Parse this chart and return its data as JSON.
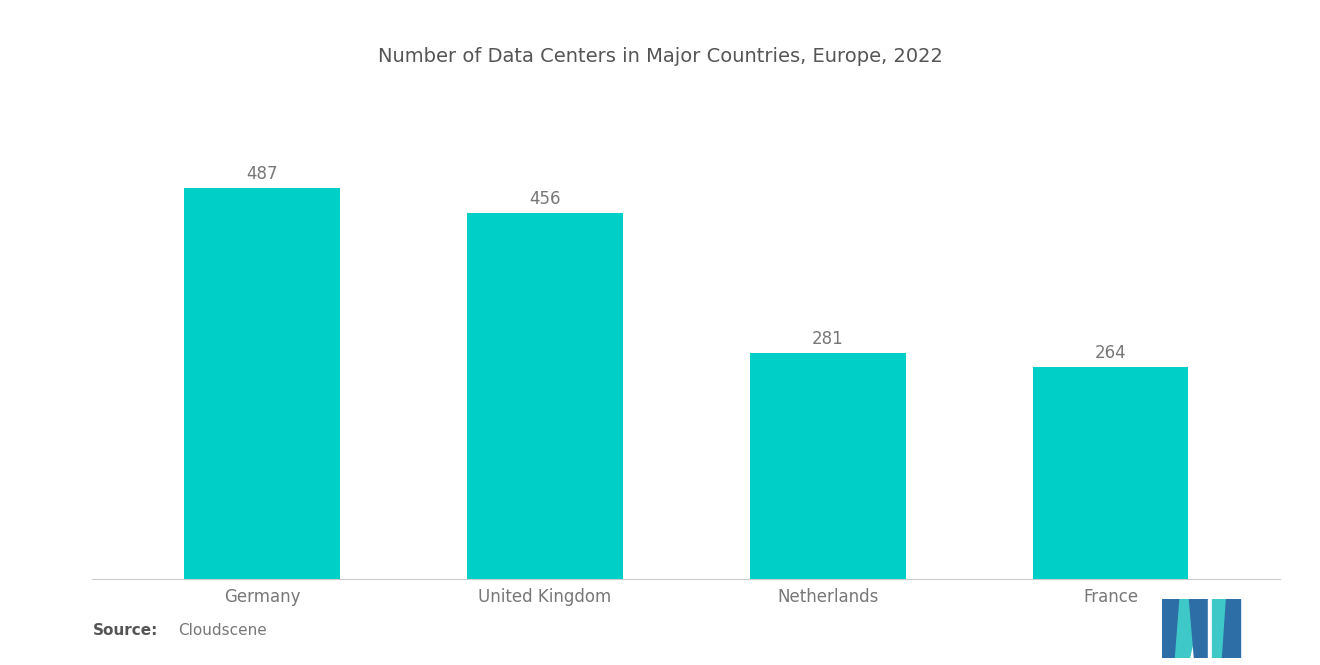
{
  "title": "Number of Data Centers in Major Countries, Europe, 2022",
  "categories": [
    "Germany",
    "United Kingdom",
    "Netherlands",
    "France"
  ],
  "values": [
    487,
    456,
    281,
    264
  ],
  "bar_color": "#00CFC8",
  "value_color": "#777777",
  "label_color": "#777777",
  "title_color": "#555555",
  "background_color": "#ffffff",
  "source_bold": "Source:",
  "source_normal": "  Cloudscene",
  "title_fontsize": 14,
  "label_fontsize": 12,
  "value_fontsize": 12,
  "source_fontsize": 11,
  "ylim": [
    0,
    580
  ],
  "bar_width": 0.55,
  "logo_blue": "#2E6EA6",
  "logo_teal": "#3EC8C8"
}
